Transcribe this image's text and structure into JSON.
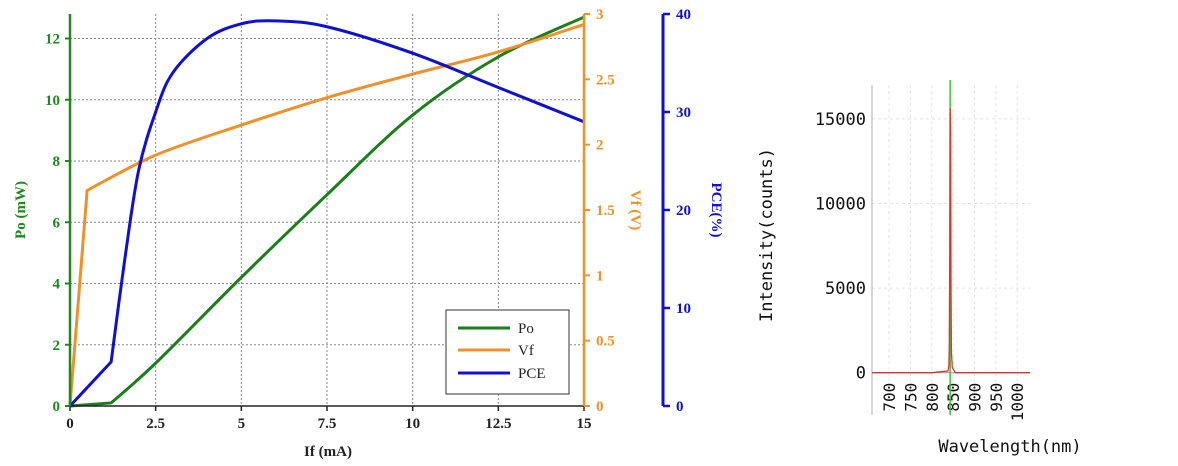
{
  "chart_data": [
    {
      "type": "line",
      "xlabel": "If (mA)",
      "xlim": [
        0,
        15
      ],
      "xticks": [
        "0",
        "2.5",
        "5",
        "7.5",
        "10",
        "12.5",
        "15"
      ],
      "axes": {
        "left": {
          "label": "Po (mW)",
          "ylim": [
            0,
            12.8
          ],
          "ticks": [
            "0",
            "2",
            "4",
            "6",
            "8",
            "10",
            "12"
          ],
          "color": "#1a8a1a"
        },
        "right1": {
          "label": "Vf (V)",
          "ylim": [
            0,
            3
          ],
          "ticks": [
            "0",
            "0.5",
            "1",
            "1.5",
            "2",
            "2.5",
            "3"
          ],
          "color": "#f0902a"
        },
        "right2": {
          "label": "PCE(%)",
          "ylim": [
            0,
            40
          ],
          "ticks": [
            "0",
            "10",
            "20",
            "30",
            "40"
          ],
          "color": "#1010d0"
        }
      },
      "grid": true,
      "legend": {
        "position": "bottom-right",
        "entries": [
          "Po",
          "Vf",
          "PCE"
        ]
      },
      "series": [
        {
          "name": "Po",
          "axis": "left",
          "color": "#1a7f1a",
          "x": [
            0,
            1.2,
            2.5,
            5,
            7.5,
            10,
            12.5,
            15
          ],
          "y": [
            0,
            0.1,
            1.4,
            4.2,
            6.9,
            9.5,
            11.4,
            12.7
          ]
        },
        {
          "name": "Vf",
          "axis": "right1",
          "color": "#f0902a",
          "x": [
            0,
            0.5,
            2.5,
            5,
            7.5,
            10,
            12.5,
            15
          ],
          "y": [
            0,
            1.65,
            1.92,
            2.15,
            2.36,
            2.54,
            2.71,
            2.92
          ]
        },
        {
          "name": "PCE",
          "axis": "right2",
          "color": "#1010d0",
          "x": [
            0,
            0.4,
            1.2,
            1.6,
            2,
            2.5,
            3,
            4,
            5,
            6,
            7.5,
            10,
            12.5,
            15
          ],
          "y": [
            0,
            1.5,
            4.5,
            15,
            24,
            30,
            34,
            37.5,
            39,
            39.3,
            38.7,
            36,
            32.5,
            29
          ]
        }
      ]
    },
    {
      "type": "line",
      "xlabel": "Wavelength(nm)",
      "ylabel": "Intensity(counts)",
      "xlim": [
        660,
        1030
      ],
      "ylim": [
        -2500,
        17000
      ],
      "xticks": [
        "700",
        "750",
        "800",
        "850",
        "900",
        "950",
        "1000"
      ],
      "yticks": [
        "0",
        "5000",
        "10000",
        "15000"
      ],
      "grid": true,
      "series": [
        {
          "color": "#e03030",
          "x": [
            660,
            800,
            838,
            840,
            841,
            842,
            843,
            844,
            845,
            846,
            848,
            855,
            1030
          ],
          "y": [
            0,
            0,
            100,
            400,
            1500,
            7000,
            15600,
            14200,
            5000,
            1200,
            300,
            0,
            0
          ]
        }
      ],
      "marker_line": {
        "x": 843,
        "color": "#40c040"
      }
    }
  ]
}
